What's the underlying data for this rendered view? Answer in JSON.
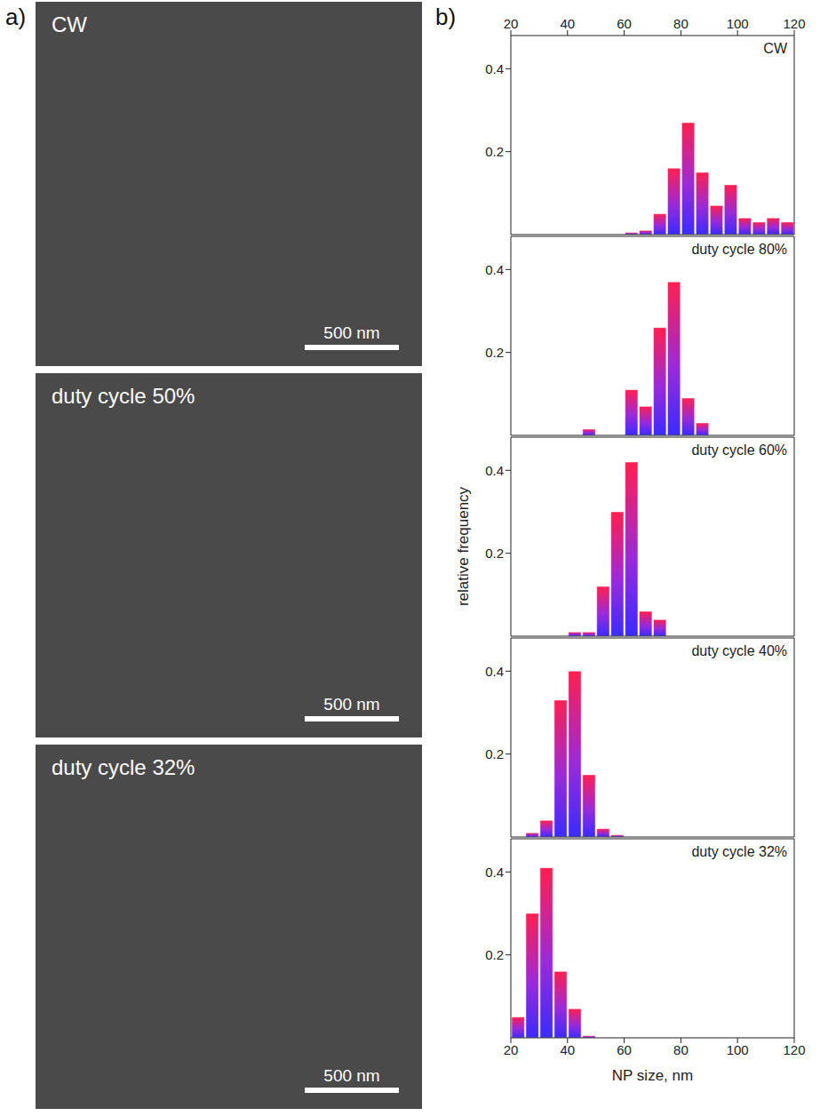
{
  "panel_labels": [
    "a)",
    "b)"
  ],
  "images": [
    {
      "label": "CW",
      "scale_bar": "500 nm"
    },
    {
      "label": "duty cycle 50%",
      "scale_bar": "500 nm"
    },
    {
      "label": "duty cycle 32%",
      "scale_bar": "500 nm"
    }
  ],
  "ylabel": "relative frequency",
  "chart_data": [
    {
      "type": "histogram",
      "title": "CW",
      "bins": [
        60,
        65,
        70,
        75,
        80,
        85,
        90,
        95,
        100,
        105,
        110,
        115,
        120
      ],
      "values": [
        0.005,
        0.01,
        0.05,
        0.16,
        0.27,
        0.15,
        0.07,
        0.12,
        0.04,
        0.03,
        0.04,
        0.03
      ],
      "color": "#ff1f4f",
      "xlim": [
        20,
        120
      ],
      "xticks": [
        20,
        40,
        60,
        80,
        100,
        120
      ],
      "ylim": [
        0,
        0.48
      ],
      "yticks": [
        0.2,
        0.4
      ]
    },
    {
      "type": "histogram",
      "title": "duty cycle 80%",
      "bins": [
        45,
        50,
        55,
        60,
        65,
        70,
        75,
        80,
        85,
        90
      ],
      "values": [
        0.015,
        0,
        0,
        0.11,
        0.07,
        0.26,
        0.37,
        0.09,
        0.03
      ],
      "color": "#ff1f4f",
      "xlim": [
        20,
        120
      ],
      "xticks": [
        20,
        40,
        60,
        80,
        100,
        120
      ],
      "ylim": [
        0,
        0.48
      ],
      "yticks": [
        0.2,
        0.4
      ],
      "tick_labels": "y"
    },
    {
      "type": "histogram",
      "title": "duty cycle 60%",
      "bins": [
        40,
        45,
        50,
        55,
        60,
        65,
        70,
        75
      ],
      "values": [
        0.01,
        0.01,
        0.12,
        0.3,
        0.42,
        0.06,
        0.04
      ],
      "color": "#ff1f4f",
      "xlim": [
        20,
        120
      ],
      "xticks": [
        20,
        40,
        60,
        80,
        100,
        120
      ],
      "ylim": [
        0,
        0.48
      ],
      "yticks": [
        0.2,
        0.4
      ],
      "tick_labels": "y"
    },
    {
      "type": "histogram",
      "title": "duty cycle 40%",
      "bins": [
        25,
        30,
        35,
        40,
        45,
        50,
        55,
        60
      ],
      "values": [
        0.01,
        0.04,
        0.33,
        0.4,
        0.15,
        0.02,
        0.005
      ],
      "color": "#ff1f4f",
      "xlim": [
        20,
        120
      ],
      "xticks": [
        20,
        40,
        60,
        80,
        100,
        120
      ],
      "ylim": [
        0,
        0.48
      ],
      "yticks": [
        0.2,
        0.4
      ],
      "tick_labels": "y"
    },
    {
      "type": "histogram",
      "title": "duty cycle 32%",
      "bins": [
        20,
        25,
        30,
        35,
        40,
        45,
        50
      ],
      "values": [
        0.05,
        0.3,
        0.41,
        0.16,
        0.07,
        0.005
      ],
      "color": "#ff1f4f",
      "xlim": [
        20,
        120
      ],
      "xticks": [
        20,
        40,
        60,
        80,
        100,
        120
      ],
      "ylim": [
        0,
        0.48
      ],
      "yticks": [
        0.2,
        0.4
      ],
      "xlabel": "NP size, nm"
    }
  ]
}
